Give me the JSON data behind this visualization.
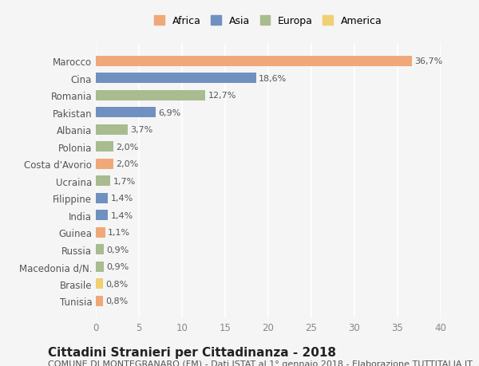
{
  "countries": [
    "Tunisia",
    "Brasile",
    "Macedonia d/N.",
    "Russia",
    "Guinea",
    "India",
    "Filippine",
    "Ucraina",
    "Costa d'Avorio",
    "Polonia",
    "Albania",
    "Pakistan",
    "Romania",
    "Cina",
    "Marocco"
  ],
  "values": [
    0.8,
    0.8,
    0.9,
    0.9,
    1.1,
    1.4,
    1.4,
    1.7,
    2.0,
    2.0,
    3.7,
    6.9,
    12.7,
    18.6,
    36.7
  ],
  "labels": [
    "0,8%",
    "0,8%",
    "0,9%",
    "0,9%",
    "1,1%",
    "1,4%",
    "1,4%",
    "1,7%",
    "2,0%",
    "2,0%",
    "3,7%",
    "6,9%",
    "12,7%",
    "18,6%",
    "36,7%"
  ],
  "continents": [
    "Africa",
    "America",
    "Europa",
    "Europa",
    "Africa",
    "Asia",
    "Asia",
    "Europa",
    "Africa",
    "Europa",
    "Europa",
    "Asia",
    "Europa",
    "Asia",
    "Africa"
  ],
  "continent_colors": {
    "Africa": "#F0A878",
    "Asia": "#7090C0",
    "Europa": "#A8BC90",
    "America": "#F0D070"
  },
  "legend_order": [
    "Africa",
    "Asia",
    "Europa",
    "America"
  ],
  "bg_color": "#F5F5F5",
  "grid_color": "#FFFFFF",
  "xlim": [
    0,
    40
  ],
  "xticks": [
    0,
    5,
    10,
    15,
    20,
    25,
    30,
    35,
    40
  ],
  "title_bold": "Cittadini Stranieri per Cittadinanza - 2018",
  "subtitle": "COMUNE DI MONTEGRANARO (FM) - Dati ISTAT al 1° gennaio 2018 - Elaborazione TUTTITALIA.IT",
  "title_fontsize": 11,
  "subtitle_fontsize": 8,
  "label_fontsize": 8,
  "tick_fontsize": 8.5,
  "bar_height": 0.6
}
